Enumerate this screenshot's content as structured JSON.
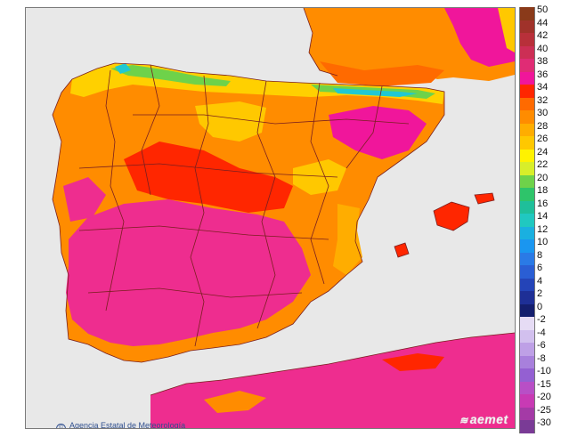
{
  "map": {
    "credit": "Agencia Estatal de Meteorología",
    "logo": "aemet",
    "colors": {
      "sea": "#e8e8e8",
      "border": "#7a1f1f",
      "hot": "#ee2d8f",
      "veryhot": "#f0169b",
      "red": "#ff2600",
      "orange": "#ff8c00",
      "yellow": "#ffd000",
      "green": "#6ed24a",
      "cyan": "#20c8d2"
    }
  },
  "legend": {
    "positive": [
      {
        "label": "50",
        "color": "#8a3a1a"
      },
      {
        "label": "44",
        "color": "#a0322a"
      },
      {
        "label": "42",
        "color": "#b8303a"
      },
      {
        "label": "40",
        "color": "#cc2f55"
      },
      {
        "label": "38",
        "color": "#e02c75"
      },
      {
        "label": "36",
        "color": "#f0169b"
      },
      {
        "label": "34",
        "color": "#ff2600"
      },
      {
        "label": "32",
        "color": "#ff6a00"
      },
      {
        "label": "30",
        "color": "#ff8c00"
      },
      {
        "label": "28",
        "color": "#ffad00"
      },
      {
        "label": "26",
        "color": "#ffc800"
      },
      {
        "label": "24",
        "color": "#fff200"
      },
      {
        "label": "22",
        "color": "#d8ee2a"
      },
      {
        "label": "20",
        "color": "#6ed24a"
      },
      {
        "label": "18",
        "color": "#2ec46a"
      },
      {
        "label": "16",
        "color": "#1fbf9a"
      },
      {
        "label": "14",
        "color": "#20c8c0"
      },
      {
        "label": "12",
        "color": "#1ab0e0"
      },
      {
        "label": "10",
        "color": "#1a96f0"
      },
      {
        "label": "8",
        "color": "#2a7ae6"
      },
      {
        "label": "6",
        "color": "#2a5ed4"
      },
      {
        "label": "4",
        "color": "#2444b8"
      },
      {
        "label": "2",
        "color": "#1e2f96"
      },
      {
        "label": "0",
        "color": "#141e6e"
      }
    ],
    "negative": [
      {
        "label": "-2",
        "color": "#e6dcf5"
      },
      {
        "label": "-4",
        "color": "#d2c0ee"
      },
      {
        "label": "-6",
        "color": "#bea0e6"
      },
      {
        "label": "-8",
        "color": "#a880dc"
      },
      {
        "label": "-10",
        "color": "#9460d2"
      },
      {
        "label": "-15",
        "color": "#b84fc6"
      },
      {
        "label": "-20",
        "color": "#c83ab4"
      },
      {
        "label": "-25",
        "color": "#a43aa6"
      },
      {
        "label": "-30",
        "color": "#7a3b96"
      }
    ]
  }
}
